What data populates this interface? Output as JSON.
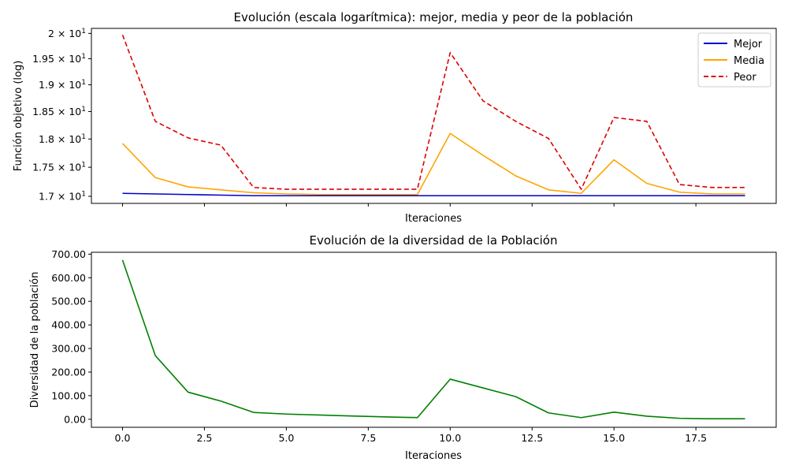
{
  "chart_data": [
    {
      "type": "line",
      "title": "Evolución (escala logarítmica): mejor, media y peor de la población",
      "xlabel": "Iteraciones",
      "ylabel": "Función objetivo (log)",
      "yscale": "log",
      "xlim": [
        -0.95,
        19.95
      ],
      "ylim": [
        16.88,
        20.1
      ],
      "x": [
        0,
        1,
        2,
        3,
        4,
        5,
        6,
        7,
        8,
        9,
        10,
        11,
        12,
        13,
        14,
        15,
        16,
        17,
        18,
        19
      ],
      "y_ticks": [
        {
          "value": 17.0,
          "mantissa": "1.7",
          "base": "10",
          "exp": "1"
        },
        {
          "value": 17.5,
          "mantissa": "1.75",
          "base": "10",
          "exp": "1"
        },
        {
          "value": 18.0,
          "mantissa": "1.8",
          "base": "10",
          "exp": "1"
        },
        {
          "value": 18.5,
          "mantissa": "1.85",
          "base": "10",
          "exp": "1"
        },
        {
          "value": 19.0,
          "mantissa": "1.9",
          "base": "10",
          "exp": "1"
        },
        {
          "value": 19.5,
          "mantissa": "1.95",
          "base": "10",
          "exp": "1"
        },
        {
          "value": 20.0,
          "mantissa": "2",
          "base": "10",
          "exp": "1"
        }
      ],
      "x_ticks": [
        0,
        2.5,
        5,
        7.5,
        10,
        12.5,
        15,
        17.5
      ],
      "show_x_tick_labels": false,
      "legend": "top-right",
      "grid": false,
      "series": [
        {
          "name": "Mejor",
          "color": "#0000cc",
          "dash": "solid",
          "values": [
            17.05,
            17.04,
            17.03,
            17.02,
            17.01,
            17.01,
            17.01,
            17.01,
            17.01,
            17.01,
            17.01,
            17.01,
            17.01,
            17.01,
            17.01,
            17.01,
            17.01,
            17.01,
            17.01,
            17.01
          ]
        },
        {
          "name": "Media",
          "color": "#ffa500",
          "dash": "solid",
          "values": [
            17.92,
            17.32,
            17.16,
            17.11,
            17.06,
            17.04,
            17.03,
            17.03,
            17.03,
            17.03,
            18.1,
            17.71,
            17.35,
            17.11,
            17.05,
            17.63,
            17.22,
            17.07,
            17.04,
            17.04
          ]
        },
        {
          "name": "Peor",
          "color": "#dd0000",
          "dash": "dashed",
          "values": [
            19.97,
            18.32,
            18.02,
            17.89,
            17.15,
            17.12,
            17.12,
            17.12,
            17.12,
            17.12,
            19.62,
            18.7,
            18.32,
            18.01,
            17.12,
            18.39,
            18.32,
            17.2,
            17.15,
            17.15
          ]
        }
      ]
    },
    {
      "type": "line",
      "title": "Evolución de la diversidad de la Población",
      "xlabel": "Iteraciones",
      "ylabel": "Diversidad de la población",
      "xlim": [
        -0.95,
        19.95
      ],
      "ylim": [
        -34,
        708
      ],
      "x": [
        0,
        1,
        2,
        3,
        4,
        5,
        6,
        7,
        8,
        9,
        10,
        11,
        12,
        13,
        14,
        15,
        16,
        17,
        18,
        19
      ],
      "y_ticks": [
        {
          "value": 0,
          "label": "0.00"
        },
        {
          "value": 100,
          "label": "100.00"
        },
        {
          "value": 200,
          "label": "200.00"
        },
        {
          "value": 300,
          "label": "300.00"
        },
        {
          "value": 400,
          "label": "400.00"
        },
        {
          "value": 500,
          "label": "500.00"
        },
        {
          "value": 600,
          "label": "600.00"
        },
        {
          "value": 700,
          "label": "700.00"
        }
      ],
      "x_ticks": [
        {
          "value": 0,
          "label": "0.0"
        },
        {
          "value": 2.5,
          "label": "2.5"
        },
        {
          "value": 5,
          "label": "5.0"
        },
        {
          "value": 7.5,
          "label": "7.5"
        },
        {
          "value": 10,
          "label": "10.0"
        },
        {
          "value": 12.5,
          "label": "12.5"
        },
        {
          "value": 15,
          "label": "15.0"
        },
        {
          "value": 17.5,
          "label": "17.5"
        }
      ],
      "grid": false,
      "series": [
        {
          "color": "#008000",
          "dash": "solid",
          "values": [
            675,
            270,
            115,
            77,
            29,
            22,
            18,
            14,
            10,
            7,
            170,
            133,
            96,
            27,
            7,
            30,
            13,
            4,
            2,
            2
          ]
        }
      ]
    }
  ]
}
